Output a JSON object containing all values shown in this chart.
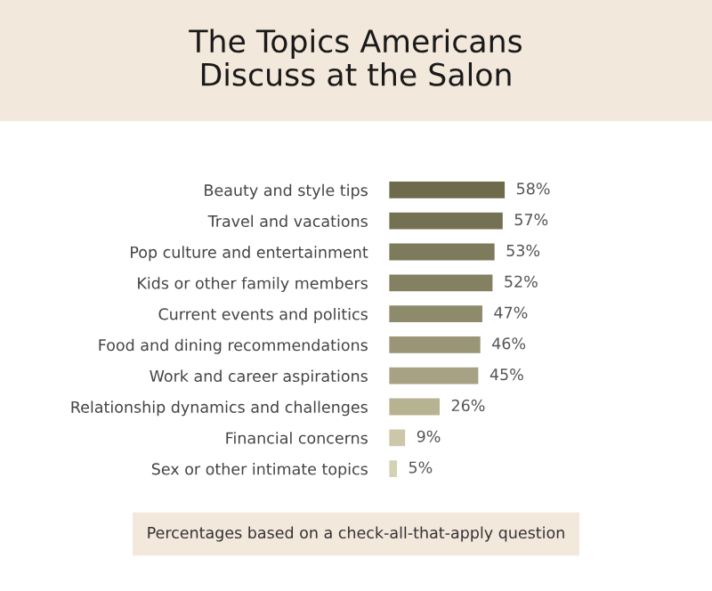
{
  "chart_data": {
    "type": "bar",
    "orientation": "horizontal",
    "title": "The Topics Americans\nDiscuss at the Salon",
    "categories": [
      "Beauty and style tips",
      "Travel and vacations",
      "Pop culture and entertainment",
      "Kids or other family members",
      "Current events and politics",
      "Food and dining recommendations",
      "Work and career aspirations",
      "Relationship dynamics and challenges",
      "Financial concerns",
      "Sex or other intimate topics"
    ],
    "values": [
      58,
      57,
      53,
      52,
      47,
      46,
      45,
      26,
      9,
      5
    ],
    "colors": [
      "#6e6a4c",
      "#747052",
      "#7e7a5c",
      "#848062",
      "#8e8a6c",
      "#999576",
      "#a6a283",
      "#b6b292",
      "#ccc7a8",
      "#d5d1b3"
    ],
    "value_labels": [
      "58%",
      "57%",
      "53%",
      "52%",
      "47%",
      "46%",
      "45%",
      "26%",
      "9%",
      "5%"
    ],
    "tick_labels": "y",
    "grid": false,
    "legend": false,
    "annotations": [
      "Percentages based on a check-all-that-apply question"
    ]
  }
}
